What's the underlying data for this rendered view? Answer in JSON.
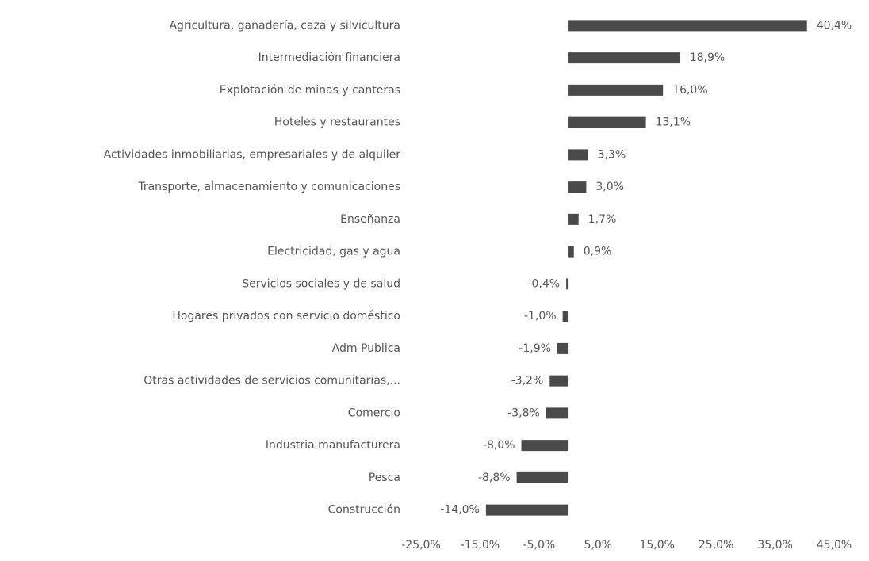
{
  "chart_data": {
    "type": "bar",
    "orientation": "horizontal",
    "categories": [
      "Agricultura, ganadería, caza y silvicultura",
      "Intermediación financiera",
      "Explotación de minas y canteras",
      "Hoteles y restaurantes",
      "Actividades inmobiliarias, empresariales y de alquiler",
      "Transporte, almacenamiento y comunicaciones",
      "Enseñanza",
      "Electricidad, gas y agua",
      "Servicios sociales y de salud",
      "Hogares privados con servicio doméstico",
      "Adm Publica",
      "Otras actividades de servicios comunitarias,...",
      "Comercio",
      "Industria manufacturera",
      "Pesca",
      "Construcción"
    ],
    "values": [
      40.4,
      18.9,
      16.0,
      13.1,
      3.3,
      3.0,
      1.7,
      0.9,
      -0.4,
      -1.0,
      -1.9,
      -3.2,
      -3.8,
      -8.0,
      -8.8,
      -14.0
    ],
    "value_labels": [
      "40,4%",
      "18,9%",
      "16,0%",
      "13,1%",
      "3,3%",
      "3,0%",
      "1,7%",
      "0,9%",
      "-0,4%",
      "-1,0%",
      "-1,9%",
      "-3,2%",
      "-3,8%",
      "-8,0%",
      "-8,8%",
      "-14,0%"
    ],
    "color": "#4a4a4a",
    "xlim": [
      -25,
      45
    ],
    "xticks": [
      {
        "value": -25,
        "label": "-25,0%"
      },
      {
        "value": -15,
        "label": "-15,0%"
      },
      {
        "value": -5,
        "label": "-5,0%"
      },
      {
        "value": 5,
        "label": "5,0%"
      },
      {
        "value": 15,
        "label": "15,0%"
      },
      {
        "value": 25,
        "label": "25,0%"
      },
      {
        "value": 35,
        "label": "35,0%"
      },
      {
        "value": 45,
        "label": "45,0%"
      }
    ],
    "grid": false
  }
}
